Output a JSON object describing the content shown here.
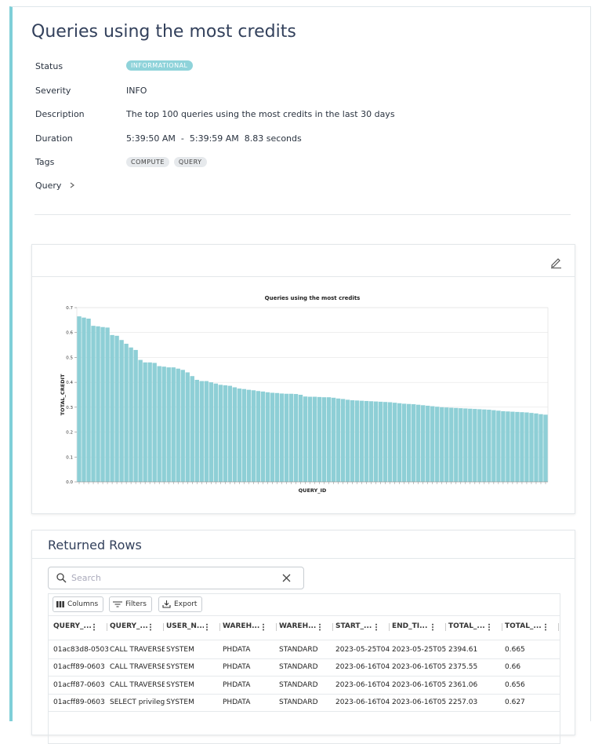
{
  "header": {
    "title": "Queries using the most credits"
  },
  "details": [
    {
      "label": "Status",
      "value": "INFORMATIONAL"
    },
    {
      "label": "Severity",
      "value": "INFO"
    },
    {
      "label": "Description",
      "value": "The top 100 queries using the most credits in the last 30 days"
    },
    {
      "label": "Duration",
      "value": "5:39:50 AM  -  5:39:59 AM  8.83 seconds"
    },
    {
      "label": "Tags",
      "tags": [
        "COMPUTE",
        "QUERY"
      ]
    }
  ],
  "query_label": "Query",
  "chart_data": {
    "type": "bar",
    "title": "Queries using the most credits",
    "x_label": "QUERY_ID",
    "y_label": "TOTAL_CREDIT",
    "color": "#8ecfd6",
    "values": [
      0.665,
      0.66,
      0.656,
      0.627,
      0.625,
      0.622,
      0.62,
      0.59,
      0.587,
      0.57,
      0.555,
      0.54,
      0.53,
      0.49,
      0.48,
      0.48,
      0.478,
      0.465,
      0.463,
      0.46,
      0.46,
      0.455,
      0.45,
      0.44,
      0.425,
      0.41,
      0.405,
      0.405,
      0.4,
      0.395,
      0.39,
      0.388,
      0.386,
      0.38,
      0.375,
      0.373,
      0.37,
      0.368,
      0.365,
      0.363,
      0.36,
      0.358,
      0.357,
      0.355,
      0.354,
      0.354,
      0.353,
      0.35,
      0.343,
      0.342,
      0.342,
      0.341,
      0.34,
      0.34,
      0.338,
      0.335,
      0.333,
      0.33,
      0.328,
      0.327,
      0.326,
      0.325,
      0.324,
      0.323,
      0.322,
      0.321,
      0.32,
      0.318,
      0.316,
      0.314,
      0.313,
      0.312,
      0.31,
      0.308,
      0.306,
      0.304,
      0.302,
      0.3,
      0.299,
      0.298,
      0.297,
      0.296,
      0.295,
      0.294,
      0.293,
      0.292,
      0.291,
      0.29,
      0.288,
      0.286,
      0.284,
      0.283,
      0.282,
      0.281,
      0.28,
      0.279,
      0.277,
      0.275,
      0.272,
      0.27
    ],
    "ylim": [
      0,
      0.7
    ],
    "yticks": [
      {
        "value": 0,
        "label": "0.0"
      },
      0.1,
      0.2,
      0.3,
      0.4,
      0.5,
      0.6,
      0.7
    ],
    "grid": true
  },
  "returned_rows": {
    "title": "Returned Rows",
    "search_placeholder": "Search",
    "toolbar": [
      "Columns",
      "Filters",
      "Export"
    ],
    "columns": [
      "QUERY_...",
      "QUERY_...",
      "USER_N...",
      "WAREH...",
      "WAREH...",
      "START_...",
      "END_TI...",
      "TOTAL_...",
      "TOTAL_..."
    ],
    "rows": [
      [
        "01ac83d8-0503",
        "CALL TRAVERSE",
        "SYSTEM",
        "PHDATA",
        "STANDARD",
        "2023-05-25T04",
        "2023-05-25T05",
        "2394.61",
        "0.665"
      ],
      [
        "01acff89-0603",
        "CALL TRAVERSE",
        "SYSTEM",
        "PHDATA",
        "STANDARD",
        "2023-06-16T04",
        "2023-06-16T05",
        "2375.55",
        "0.66"
      ],
      [
        "01acff87-0603",
        "CALL TRAVERSE",
        "SYSTEM",
        "PHDATA",
        "STANDARD",
        "2023-06-16T04",
        "2023-06-16T05",
        "2361.06",
        "0.656"
      ],
      [
        "01acff89-0603",
        "SELECT privileg",
        "SYSTEM",
        "PHDATA",
        "STANDARD",
        "2023-06-16T04",
        "2023-06-16T05",
        "2257.03",
        "0.627"
      ]
    ]
  }
}
